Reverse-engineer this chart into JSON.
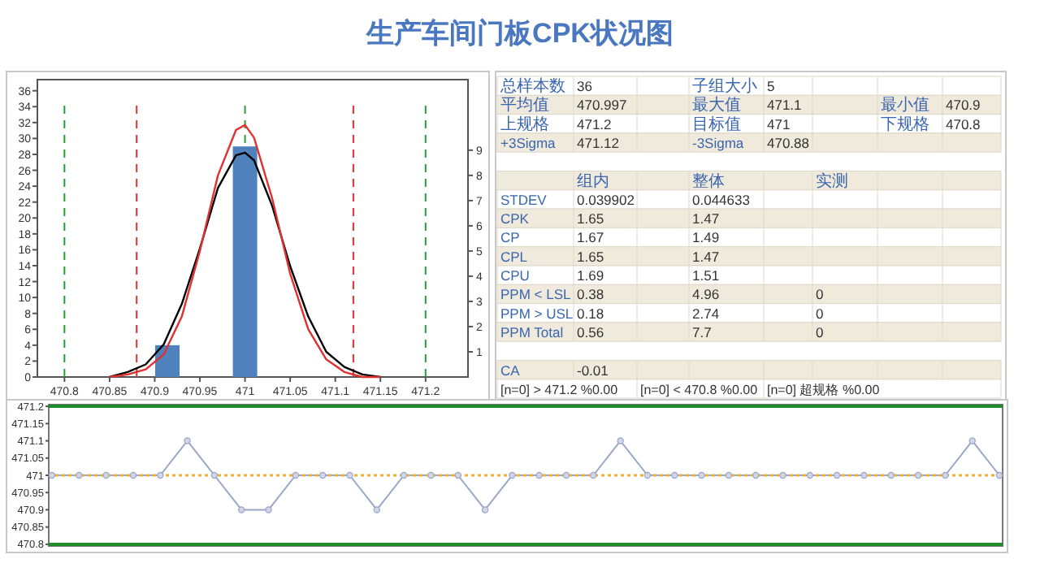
{
  "chart_data": [
    {
      "type": "bar",
      "title": "生产车间门板CPK状况图",
      "series": [
        {
          "type": "bar",
          "color": "#4f81bd",
          "x": [
            470.914,
            471.0
          ],
          "values": [
            4,
            29
          ]
        },
        {
          "type": "line",
          "axis": "y2",
          "color": "#000000",
          "x": [
            470.85,
            470.87,
            470.89,
            470.91,
            470.93,
            470.95,
            470.97,
            470.99,
            471.0,
            471.01,
            471.03,
            471.05,
            471.07,
            471.09,
            471.11,
            471.13,
            471.15
          ],
          "values": [
            0.0,
            0.2,
            0.5,
            1.3,
            2.9,
            5.1,
            7.5,
            8.8,
            8.9,
            8.6,
            6.8,
            4.4,
            2.4,
            1.0,
            0.4,
            0.1,
            0.0
          ]
        },
        {
          "type": "line",
          "axis": "y2",
          "color": "#e03030",
          "x": [
            470.85,
            470.87,
            470.89,
            470.91,
            470.93,
            470.95,
            470.97,
            470.99,
            471.0,
            471.01,
            471.03,
            471.05,
            471.07,
            471.09,
            471.11,
            471.13,
            471.15
          ],
          "values": [
            0.0,
            0.1,
            0.3,
            0.9,
            2.4,
            5.0,
            8.0,
            9.8,
            10.0,
            9.5,
            7.1,
            4.1,
            1.9,
            0.7,
            0.2,
            0.0,
            0.0
          ]
        }
      ],
      "xlim": [
        470.77,
        471.247
      ],
      "xticks": [
        470.8,
        470.85,
        470.9,
        470.95,
        471,
        471.05,
        471.1,
        471.15,
        471.2
      ],
      "ylim": [
        0,
        37.4
      ],
      "yticks": [
        0,
        2,
        4,
        6,
        8,
        10,
        12,
        14,
        16,
        18,
        20,
        22,
        24,
        26,
        28,
        30,
        32,
        34,
        36
      ],
      "y2lim": [
        0,
        11.8
      ],
      "y2ticks": [
        1,
        2,
        3,
        4,
        5,
        6,
        7,
        8,
        9
      ],
      "ref_lines": [
        {
          "axis": "x",
          "value": 470.8,
          "color": "#2e9a3e",
          "line_style": "dashed"
        },
        {
          "axis": "x",
          "value": 471,
          "color": "#2e9a3e",
          "line_style": "dashed"
        },
        {
          "axis": "x",
          "value": 471.2,
          "color": "#2e9a3e",
          "line_style": "dashed"
        },
        {
          "axis": "x",
          "value": 470.88,
          "color": "#e03030",
          "line_style": "dashed"
        },
        {
          "axis": "x",
          "value": 471.12,
          "color": "#e03030",
          "line_style": "dashed"
        }
      ]
    },
    {
      "type": "other",
      "annotations": [
        "总样本数",
        "36",
        "子组大小",
        "5",
        "平均值",
        "470.997",
        "最大值",
        "471.1",
        "最小值",
        "470.9",
        "上规格",
        "471.2",
        "目标值",
        "471",
        "下规格",
        "470.8",
        "+3Sigma",
        "471.12",
        "-3Sigma",
        "470.88",
        "组内",
        "整体",
        "实测",
        "STDEV",
        "0.039902",
        "0.044633",
        "CPK",
        "1.65",
        "1.47",
        "CP",
        "1.67",
        "1.49",
        "CPL",
        "1.65",
        "1.47",
        "CPU",
        "1.69",
        "1.51",
        "PPM < LSL",
        "0.38",
        "4.96",
        "0",
        "PPM > USL",
        "0.18",
        "2.74",
        "0",
        "PPM Total",
        "0.56",
        "7.7",
        "0",
        "CA",
        "-0.01",
        "[n=0] > 471.2 %0.00",
        "[n=0] < 470.8 %0.00",
        "[n=0] 超规格 %0.00"
      ]
    },
    {
      "type": "line",
      "categories": [
        null,
        null,
        null,
        null,
        null,
        null,
        null,
        null,
        null,
        null,
        null,
        null,
        null,
        null,
        null,
        null,
        null,
        null,
        null,
        null,
        null,
        null,
        null,
        null,
        null,
        null,
        null,
        null,
        null,
        null,
        null,
        null,
        null,
        null,
        null,
        null
      ],
      "series": [
        {
          "color": "#9aa6c8",
          "values": [
            471,
            471,
            471,
            471,
            471,
            471.1,
            471,
            470.9,
            470.9,
            471,
            471,
            471,
            470.9,
            471,
            471,
            471,
            470.9,
            471,
            471,
            471,
            471,
            471.1,
            471,
            471,
            471,
            471,
            471,
            471,
            471,
            471,
            471,
            471,
            471,
            471,
            471.1,
            471
          ]
        }
      ],
      "marker": "circle",
      "ylim": [
        470.795,
        471.205
      ],
      "yticks": [
        470.8,
        470.85,
        470.9,
        470.95,
        471,
        471.05,
        471.1,
        471.15,
        471.2
      ],
      "ref_lines": [
        {
          "axis": "y",
          "value": 471.2,
          "color": "#1e8c2a",
          "line_style": "solid"
        },
        {
          "axis": "y",
          "value": 470.8,
          "color": "#1e8c2a",
          "line_style": "solid"
        },
        {
          "axis": "y",
          "value": 471,
          "color": "#f0b030",
          "line_style": "dotted"
        }
      ]
    }
  ]
}
